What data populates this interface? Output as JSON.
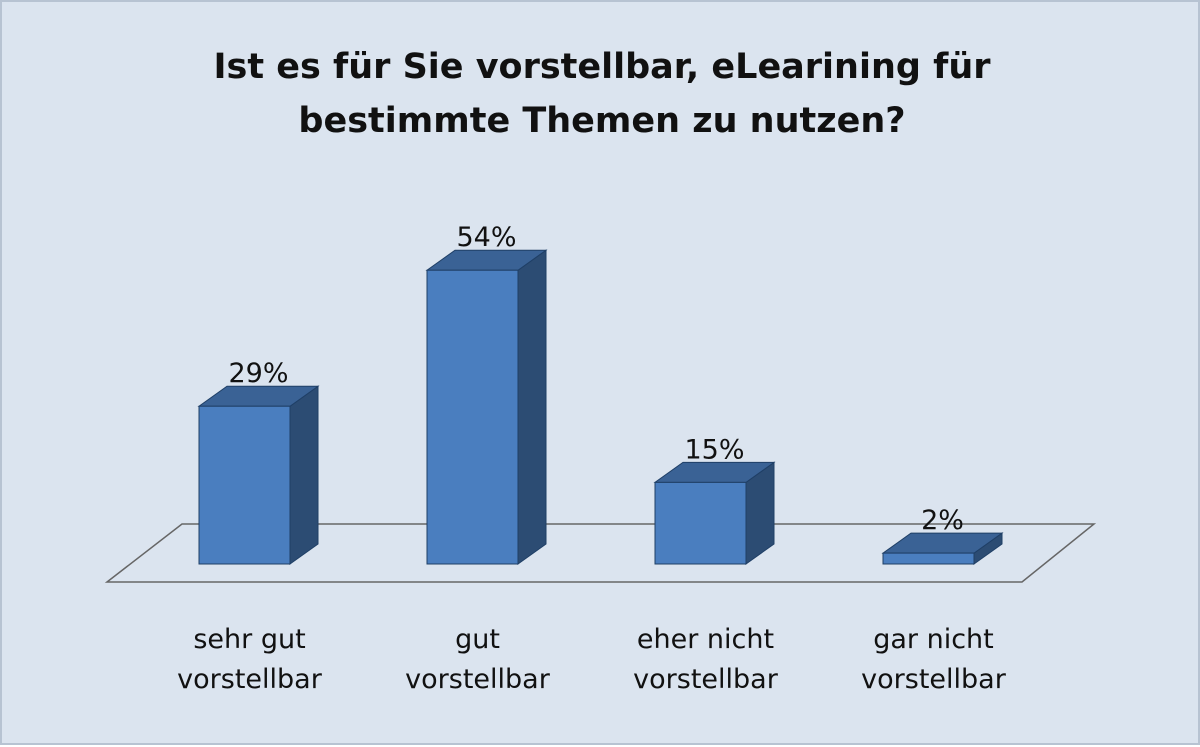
{
  "chart_data": {
    "type": "bar3d",
    "title": "Ist es für Sie vorstellbar, eLearining für bestimmte Themen zu nutzen?",
    "categories": [
      "sehr gut vorstellbar",
      "gut vorstellbar",
      "eher nicht vorstellbar",
      "gar nicht vorstellbar"
    ],
    "values": [
      29,
      54,
      15,
      2
    ],
    "value_labels": [
      "29%",
      "54%",
      "15%",
      "2%"
    ],
    "color": "#4a7ebf"
  }
}
